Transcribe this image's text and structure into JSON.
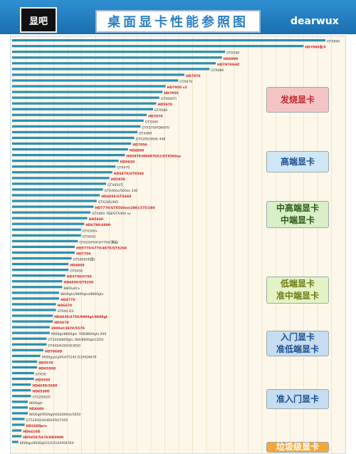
{
  "header": {
    "logo_text": "显吧",
    "title": "桌面显卡性能参照图",
    "brand": "dearwux"
  },
  "tiers": [
    {
      "lines": [
        "发烧显卡"
      ],
      "bg": "#f4c4c4",
      "color": "#c0282c"
    },
    {
      "lines": [
        "高端显卡"
      ],
      "bg": "#cfe6f6",
      "color": "#1c4f8d"
    },
    {
      "lines": [
        "中高端显卡",
        "中端显卡"
      ],
      "bg": "#d9efc8",
      "color": "#2a5a15"
    },
    {
      "lines": [
        "低端显卡",
        "准中端显卡"
      ],
      "bg": "#e3f3c4",
      "color": "#6d7a12"
    },
    {
      "lines": [
        "入门显卡",
        "准低端显卡"
      ],
      "bg": "#c6dcf0",
      "color": "#1c4f8d"
    },
    {
      "lines": [
        "准入门显卡"
      ],
      "bg": "#c6dcf0",
      "color": "#1c4f8d"
    },
    {
      "lines": [
        "垃圾级显卡"
      ],
      "bg": "#f7a636",
      "color": "#ffffff"
    }
  ],
  "chart_data": {
    "type": "bar",
    "orientation": "horizontal",
    "title": "桌面显卡性能参照图",
    "grid": true,
    "colors": {
      "bar": "#2a8fb5",
      "nvidia_label": "#333333",
      "amd_label": "#cc1a1a"
    },
    "xlim": [
      0,
      100
    ],
    "categories": [
      "GTX690",
      "HD7990显卡",
      "GTX590",
      "HD6990",
      "HD7970GHZ",
      "GTX680",
      "HD7970",
      "GTX670",
      "HD7950 v2",
      "HD7950",
      "GTX660Ti",
      "HD5970",
      "GTX580",
      "HD7870",
      "GTX560",
      "GTX570/HD6970",
      "GTX480",
      "GTX295/560ti 448",
      "HD7850",
      "HD6950",
      "HD5870/HD4870X2/GTX560se",
      "HD6930",
      "GTX470",
      "HD6870/GTX560",
      "HD5850",
      "GTX650Ti",
      "GTX460x/560se 336",
      "HD6850/GTX460",
      "GTX285/465",
      "HD7770/GTX560se(288)/275/280",
      "GTX460 768/GTX460 se",
      "HD5830",
      "HD6790/4890",
      "GTX260+",
      "GTX650",
      "GTX550Ti/HD7750(薄版)",
      "HD5770/6770/4870/GTX260",
      "HD7750",
      "GTS450(中国)",
      "HD4860",
      "GTS450",
      "HD5750/6750",
      "HD4850/GTS250",
      "8800ultra",
      "8800gtx/9800gtx/8800gts",
      "HD4770",
      "HD6670",
      "GT640 D3",
      "HD4830/4750/9800gt/8800gt",
      "HD5670",
      "2900xt/3870/5570",
      "9600gt/8800gts 768/8800gts 640",
      "GT240/8800gts 384/8800gts(320)",
      "GT440/630/HD3850",
      "HD7660D",
      "9600gso(g94)/GT240 D3/HD4670",
      "HD5570",
      "HD6550D",
      "GT430",
      "HD5550",
      "HD4650/3680",
      "HD6530D",
      "GT220/620",
      "8600gts",
      "HD4600",
      "8600gt/9500gt/HD2600xt/3650",
      "GT520/610/HD6450/7450",
      "HD2600pro",
      "HD6410D",
      "HD5450/5470/HD3000",
      "8600gs/8500gt/210/310/HD4350"
    ],
    "values": [
      100,
      93,
      68,
      67,
      65,
      63,
      55,
      53,
      49,
      48,
      47,
      46,
      45,
      43,
      42,
      41,
      40,
      39,
      38,
      37,
      36,
      34,
      33,
      32,
      31,
      30,
      29,
      28,
      27,
      26,
      25,
      24,
      23,
      22,
      22,
      21,
      20,
      20,
      19,
      18,
      18,
      17,
      16,
      16,
      15,
      15,
      14,
      14,
      13,
      13,
      12,
      12,
      11,
      11,
      10,
      9,
      8,
      8,
      7,
      7,
      6,
      6,
      6,
      5,
      5,
      5,
      4,
      4,
      3,
      3,
      2
    ],
    "brand": [
      "nvidia",
      "amd",
      "nvidia",
      "amd",
      "amd",
      "nvidia",
      "amd",
      "nvidia",
      "amd",
      "amd",
      "nvidia",
      "amd",
      "nvidia",
      "amd",
      "nvidia",
      "nvidia",
      "nvidia",
      "nvidia",
      "amd",
      "amd",
      "amd",
      "amd",
      "nvidia",
      "amd",
      "amd",
      "nvidia",
      "nvidia",
      "amd",
      "nvidia",
      "amd",
      "nvidia",
      "amd",
      "amd",
      "nvidia",
      "nvidia",
      "nvidia",
      "amd",
      "amd",
      "nvidia",
      "amd",
      "nvidia",
      "amd",
      "amd",
      "nvidia",
      "nvidia",
      "amd",
      "amd",
      "nvidia",
      "amd",
      "amd",
      "amd",
      "nvidia",
      "nvidia",
      "nvidia",
      "amd",
      "nvidia",
      "amd",
      "amd",
      "nvidia",
      "amd",
      "amd",
      "amd",
      "nvidia",
      "nvidia",
      "amd",
      "nvidia",
      "nvidia",
      "amd",
      "amd",
      "amd",
      "nvidia"
    ]
  }
}
